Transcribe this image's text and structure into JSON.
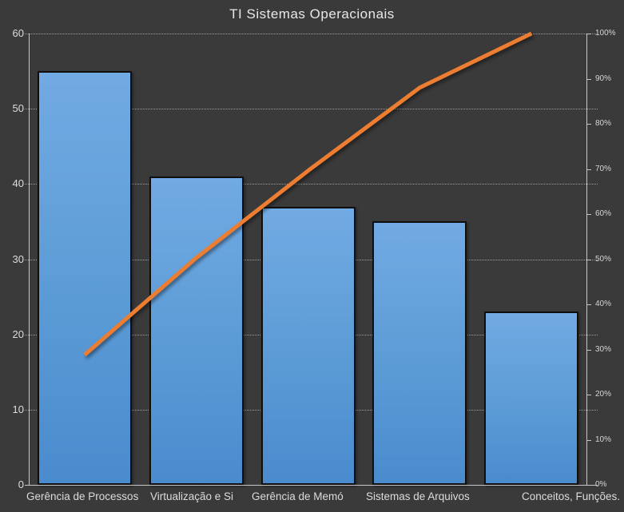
{
  "window": {
    "background": "#3a3a3a"
  },
  "chart_data": {
    "type": "pareto (bar + cumulative line)",
    "title": "TI Sistemas Operacionais",
    "categories": [
      "Gerência de Processos",
      "Virtualização e Si",
      "Gerência de Memó",
      "Sistemas de Arquivos",
      "Conceitos, Funções."
    ],
    "series": [
      {
        "role": "bars",
        "type": "bar",
        "color": "#5b9bd5",
        "border_color": "#0f0f0f",
        "values": [
          55,
          41,
          37,
          35,
          23
        ]
      },
      {
        "role": "cumulative-line",
        "type": "line",
        "color": "#ed7d31",
        "values_pct": [
          28.8,
          50.3,
          69.6,
          88.0,
          100.0
        ]
      }
    ],
    "left_axis": {
      "min": 0,
      "max": 60,
      "ticks": [
        0,
        10,
        20,
        30,
        40,
        50,
        60
      ]
    },
    "right_axis": {
      "min": 0,
      "max": 100,
      "ticks": [
        "0%",
        "10%",
        "20%",
        "30%",
        "40%",
        "50%",
        "60%",
        "70%",
        "80%",
        "90%",
        "100%"
      ]
    },
    "grid": "horizontal dotted",
    "legend": "none",
    "axis_color": "#c6c6c6",
    "text_color": "#dcdcdc"
  }
}
